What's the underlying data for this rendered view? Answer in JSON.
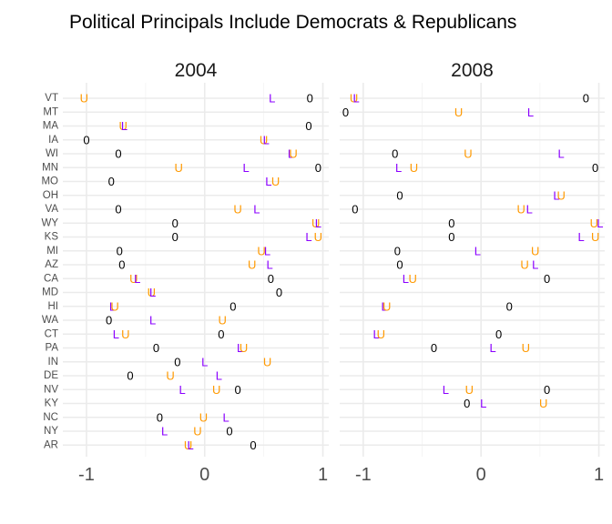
{
  "chart_data": {
    "type": "scatter",
    "title": "Political Principals Include Democrats & Republicans",
    "states": [
      "VT",
      "MT",
      "MA",
      "IA",
      "WI",
      "MN",
      "MO",
      "OH",
      "VA",
      "WY",
      "KS",
      "MI",
      "AZ",
      "CA",
      "MD",
      "HI",
      "WA",
      "CT",
      "PA",
      "IN",
      "DE",
      "NV",
      "KY",
      "NC",
      "NY",
      "AR"
    ],
    "x_ticks": [
      "-1",
      "0",
      "1"
    ],
    "xlim": [
      -1.2,
      1.05
    ],
    "series": [
      {
        "label": "0",
        "color": "#000000"
      },
      {
        "label": "L",
        "color": "#8b00ff"
      },
      {
        "label": "U",
        "color": "#ff9900"
      }
    ],
    "panels": [
      {
        "year": "2004",
        "points": [
          {
            "state": "VT",
            "label": "U",
            "x": -1.02
          },
          {
            "state": "VT",
            "label": "L",
            "x": 0.57
          },
          {
            "state": "VT",
            "label": "0",
            "x": 0.89
          },
          {
            "state": "MA",
            "label": "U",
            "x": -0.69
          },
          {
            "state": "MA",
            "label": "L",
            "x": -0.68
          },
          {
            "state": "MA",
            "label": "0",
            "x": 0.88
          },
          {
            "state": "IA",
            "label": "0",
            "x": -1.0
          },
          {
            "state": "IA",
            "label": "U",
            "x": 0.5
          },
          {
            "state": "IA",
            "label": "L",
            "x": 0.52
          },
          {
            "state": "WI",
            "label": "0",
            "x": -0.73
          },
          {
            "state": "WI",
            "label": "L",
            "x": 0.73
          },
          {
            "state": "WI",
            "label": "U",
            "x": 0.75
          },
          {
            "state": "MN",
            "label": "U",
            "x": -0.22
          },
          {
            "state": "MN",
            "label": "L",
            "x": 0.35
          },
          {
            "state": "MN",
            "label": "0",
            "x": 0.96
          },
          {
            "state": "MO",
            "label": "0",
            "x": -0.79
          },
          {
            "state": "MO",
            "label": "L",
            "x": 0.54
          },
          {
            "state": "MO",
            "label": "U",
            "x": 0.6
          },
          {
            "state": "VA",
            "label": "0",
            "x": -0.73
          },
          {
            "state": "VA",
            "label": "U",
            "x": 0.28
          },
          {
            "state": "VA",
            "label": "L",
            "x": 0.44
          },
          {
            "state": "WY",
            "label": "0",
            "x": -0.25
          },
          {
            "state": "WY",
            "label": "U",
            "x": 0.94
          },
          {
            "state": "WY",
            "label": "L",
            "x": 0.96
          },
          {
            "state": "KS",
            "label": "0",
            "x": -0.25
          },
          {
            "state": "KS",
            "label": "L",
            "x": 0.88
          },
          {
            "state": "KS",
            "label": "U",
            "x": 0.96
          },
          {
            "state": "MI",
            "label": "0",
            "x": -0.72
          },
          {
            "state": "MI",
            "label": "U",
            "x": 0.48
          },
          {
            "state": "MI",
            "label": "L",
            "x": 0.53
          },
          {
            "state": "AZ",
            "label": "0",
            "x": -0.7
          },
          {
            "state": "AZ",
            "label": "U",
            "x": 0.4
          },
          {
            "state": "AZ",
            "label": "L",
            "x": 0.55
          },
          {
            "state": "CA",
            "label": "U",
            "x": -0.6
          },
          {
            "state": "CA",
            "label": "L",
            "x": -0.57
          },
          {
            "state": "CA",
            "label": "0",
            "x": 0.56
          },
          {
            "state": "MD",
            "label": "U",
            "x": -0.45
          },
          {
            "state": "MD",
            "label": "L",
            "x": -0.44
          },
          {
            "state": "MD",
            "label": "0",
            "x": 0.63
          },
          {
            "state": "HI",
            "label": "L",
            "x": -0.78
          },
          {
            "state": "HI",
            "label": "U",
            "x": -0.76
          },
          {
            "state": "HI",
            "label": "0",
            "x": 0.24
          },
          {
            "state": "WA",
            "label": "0",
            "x": -0.81
          },
          {
            "state": "WA",
            "label": "L",
            "x": -0.44
          },
          {
            "state": "WA",
            "label": "U",
            "x": 0.15
          },
          {
            "state": "CT",
            "label": "L",
            "x": -0.75
          },
          {
            "state": "CT",
            "label": "U",
            "x": -0.67
          },
          {
            "state": "CT",
            "label": "0",
            "x": 0.14
          },
          {
            "state": "PA",
            "label": "0",
            "x": -0.41
          },
          {
            "state": "PA",
            "label": "L",
            "x": 0.3
          },
          {
            "state": "PA",
            "label": "U",
            "x": 0.33
          },
          {
            "state": "IN",
            "label": "0",
            "x": -0.23
          },
          {
            "state": "IN",
            "label": "L",
            "x": 0.0
          },
          {
            "state": "IN",
            "label": "U",
            "x": 0.53
          },
          {
            "state": "DE",
            "label": "0",
            "x": -0.63
          },
          {
            "state": "DE",
            "label": "U",
            "x": -0.29
          },
          {
            "state": "DE",
            "label": "L",
            "x": 0.12
          },
          {
            "state": "NV",
            "label": "L",
            "x": -0.19
          },
          {
            "state": "NV",
            "label": "U",
            "x": 0.1
          },
          {
            "state": "NV",
            "label": "0",
            "x": 0.28
          },
          {
            "state": "NC",
            "label": "0",
            "x": -0.38
          },
          {
            "state": "NC",
            "label": "U",
            "x": -0.01
          },
          {
            "state": "NC",
            "label": "L",
            "x": 0.18
          },
          {
            "state": "NY",
            "label": "L",
            "x": -0.34
          },
          {
            "state": "NY",
            "label": "U",
            "x": -0.06
          },
          {
            "state": "NY",
            "label": "0",
            "x": 0.21
          },
          {
            "state": "AR",
            "label": "U",
            "x": -0.14
          },
          {
            "state": "AR",
            "label": "L",
            "x": -0.12
          },
          {
            "state": "AR",
            "label": "0",
            "x": 0.41
          }
        ]
      },
      {
        "year": "2008",
        "points": [
          {
            "state": "VT",
            "label": "U",
            "x": -1.08
          },
          {
            "state": "VT",
            "label": "L",
            "x": -1.06
          },
          {
            "state": "VT",
            "label": "0",
            "x": 0.89
          },
          {
            "state": "MT",
            "label": "0",
            "x": -1.15
          },
          {
            "state": "MT",
            "label": "U",
            "x": -0.19
          },
          {
            "state": "MT",
            "label": "L",
            "x": 0.42
          },
          {
            "state": "WI",
            "label": "0",
            "x": -0.73
          },
          {
            "state": "WI",
            "label": "U",
            "x": -0.11
          },
          {
            "state": "WI",
            "label": "L",
            "x": 0.68
          },
          {
            "state": "MN",
            "label": "L",
            "x": -0.7
          },
          {
            "state": "MN",
            "label": "U",
            "x": -0.57
          },
          {
            "state": "MN",
            "label": "0",
            "x": 0.97
          },
          {
            "state": "OH",
            "label": "0",
            "x": -0.69
          },
          {
            "state": "OH",
            "label": "L",
            "x": 0.64
          },
          {
            "state": "OH",
            "label": "U",
            "x": 0.68
          },
          {
            "state": "VA",
            "label": "0",
            "x": -1.07
          },
          {
            "state": "VA",
            "label": "U",
            "x": 0.34
          },
          {
            "state": "VA",
            "label": "L",
            "x": 0.41
          },
          {
            "state": "WY",
            "label": "0",
            "x": -0.25
          },
          {
            "state": "WY",
            "label": "U",
            "x": 0.96
          },
          {
            "state": "WY",
            "label": "L",
            "x": 1.01
          },
          {
            "state": "KS",
            "label": "0",
            "x": -0.25
          },
          {
            "state": "KS",
            "label": "L",
            "x": 0.85
          },
          {
            "state": "KS",
            "label": "U",
            "x": 0.97
          },
          {
            "state": "MI",
            "label": "0",
            "x": -0.71
          },
          {
            "state": "MI",
            "label": "L",
            "x": -0.03
          },
          {
            "state": "MI",
            "label": "U",
            "x": 0.46
          },
          {
            "state": "AZ",
            "label": "0",
            "x": -0.69
          },
          {
            "state": "AZ",
            "label": "U",
            "x": 0.37
          },
          {
            "state": "AZ",
            "label": "L",
            "x": 0.46
          },
          {
            "state": "CA",
            "label": "L",
            "x": -0.64
          },
          {
            "state": "CA",
            "label": "U",
            "x": -0.58
          },
          {
            "state": "CA",
            "label": "0",
            "x": 0.56
          },
          {
            "state": "HI",
            "label": "L",
            "x": -0.82
          },
          {
            "state": "HI",
            "label": "U",
            "x": -0.8
          },
          {
            "state": "HI",
            "label": "0",
            "x": 0.24
          },
          {
            "state": "CT",
            "label": "L",
            "x": -0.89
          },
          {
            "state": "CT",
            "label": "U",
            "x": -0.85
          },
          {
            "state": "CT",
            "label": "0",
            "x": 0.15
          },
          {
            "state": "PA",
            "label": "0",
            "x": -0.4
          },
          {
            "state": "PA",
            "label": "L",
            "x": 0.1
          },
          {
            "state": "PA",
            "label": "U",
            "x": 0.38
          },
          {
            "state": "NV",
            "label": "L",
            "x": -0.3
          },
          {
            "state": "NV",
            "label": "U",
            "x": -0.1
          },
          {
            "state": "NV",
            "label": "0",
            "x": 0.56
          },
          {
            "state": "KY",
            "label": "0",
            "x": -0.12
          },
          {
            "state": "KY",
            "label": "L",
            "x": 0.02
          },
          {
            "state": "KY",
            "label": "U",
            "x": 0.53
          }
        ]
      }
    ]
  }
}
